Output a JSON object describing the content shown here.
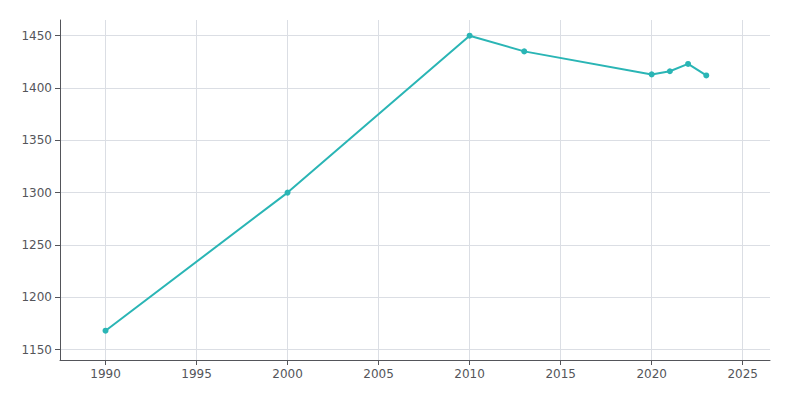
{
  "chart_data": {
    "type": "line",
    "x": [
      1990,
      2000,
      2010,
      2013,
      2020,
      2021,
      2022,
      2023
    ],
    "values": [
      1168,
      1300,
      1450,
      1435,
      1413,
      1416,
      1423,
      1412
    ],
    "color": "#2AB5B5",
    "marker": "circle",
    "xlim": [
      1987.5,
      2026.5
    ],
    "xticks": [
      1990,
      1995,
      2000,
      2005,
      2010,
      2015,
      2020,
      2025
    ],
    "ylim": [
      1140,
      1465
    ],
    "yticks": [
      1150,
      1200,
      1250,
      1300,
      1350,
      1400,
      1450
    ],
    "grid": true
  }
}
